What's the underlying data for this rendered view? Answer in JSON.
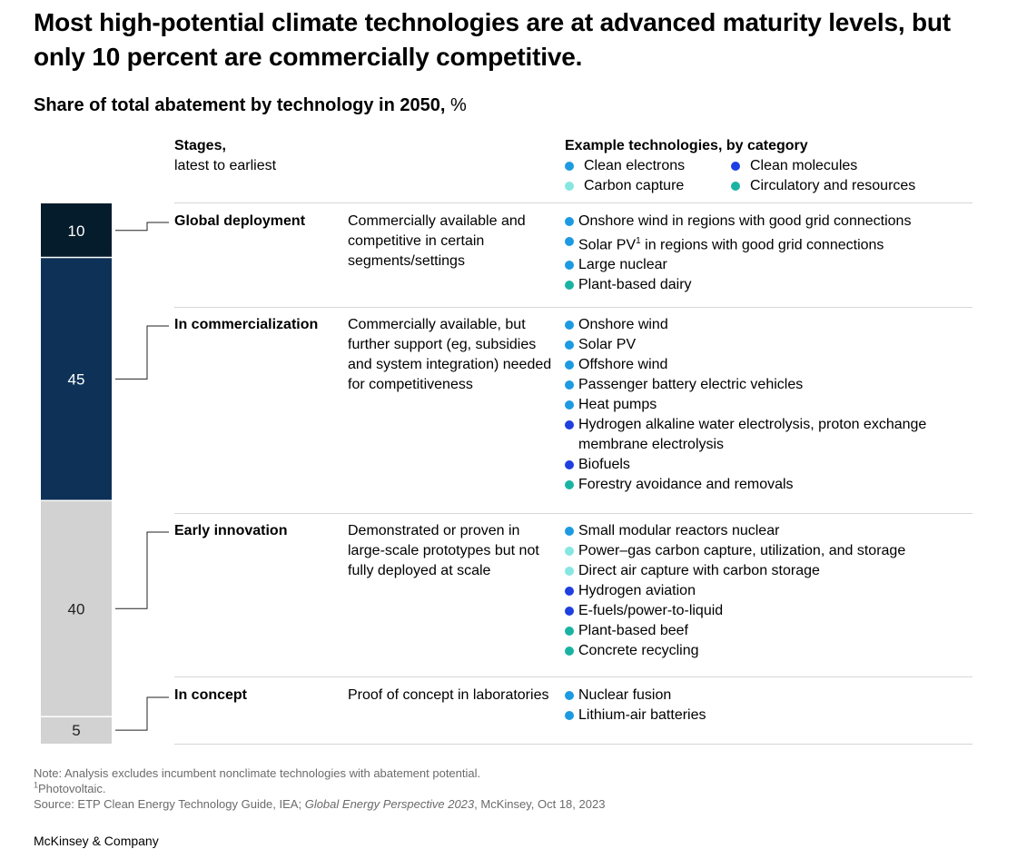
{
  "title": "Most high-potential climate technologies are at advanced maturity levels, but only 10 percent are commercially competitive.",
  "subtitle": {
    "bold": "Share of total abatement by technology in 2050,",
    "unit": " %"
  },
  "stages_header": {
    "line1": "Stages,",
    "line2": "latest to earliest"
  },
  "legend": {
    "title": "Example technologies, by category",
    "categories": [
      {
        "name": "Clean electrons",
        "color": "#1c9ae2"
      },
      {
        "name": "Clean molecules",
        "color": "#1f3fe0"
      },
      {
        "name": "Carbon capture",
        "color": "#86e6e2"
      },
      {
        "name": "Circulatory and resources",
        "color": "#1ab3a3"
      }
    ]
  },
  "chart_data": {
    "type": "bar",
    "title": "Share of total abatement by technology in 2050, %",
    "stacked": true,
    "orientation": "vertical",
    "categories": [
      "Global deployment",
      "In commercialization",
      "Early innovation",
      "In concept"
    ],
    "values": [
      10,
      45,
      40,
      5
    ],
    "colors": [
      "#051c2c",
      "#0e3257",
      "#d2d2d2",
      "#d2d2d2"
    ],
    "label_colors": [
      "#ffffff",
      "#ffffff",
      "#222222",
      "#222222"
    ],
    "unit": "%"
  },
  "stages": [
    {
      "name": "Global deployment",
      "description": "Commercially available and competitive in certain segments/settings",
      "technologies": [
        {
          "text": "Onshore wind in regions with good grid connections",
          "category": 0
        },
        {
          "pre": "Solar PV",
          "sup": "1",
          "post": " in regions with good grid connections",
          "category": 0
        },
        {
          "text": "Large nuclear",
          "category": 0
        },
        {
          "text": "Plant-based dairy",
          "category": 3
        }
      ]
    },
    {
      "name": "In commercialization",
      "description": "Commercially available, but further support (eg, subsidies and system integration) needed for competitiveness",
      "technologies": [
        {
          "text": "Onshore wind",
          "category": 0
        },
        {
          "text": "Solar PV",
          "category": 0
        },
        {
          "text": "Offshore wind",
          "category": 0
        },
        {
          "text": "Passenger battery electric vehicles",
          "category": 0
        },
        {
          "text": "Heat pumps",
          "category": 0
        },
        {
          "text": "Hydrogen alkaline water electrolysis, proton exchange membrane electrolysis",
          "category": 1
        },
        {
          "text": "Biofuels",
          "category": 1
        },
        {
          "text": "Forestry avoidance and removals",
          "category": 3
        }
      ]
    },
    {
      "name": "Early innovation",
      "description": "Demonstrated or proven in large-scale prototypes but not fully deployed at scale",
      "technologies": [
        {
          "text": "Small modular reactors nuclear",
          "category": 0
        },
        {
          "text": "Power–gas carbon capture, utilization, and storage",
          "category": 2
        },
        {
          "text": "Direct air capture with carbon storage",
          "category": 2
        },
        {
          "text": "Hydrogen aviation",
          "category": 1
        },
        {
          "text": "E-fuels/power-to-liquid",
          "category": 1
        },
        {
          "text": "Plant-based beef",
          "category": 3
        },
        {
          "text": "Concrete recycling",
          "category": 3
        }
      ]
    },
    {
      "name": "In concept",
      "description": "Proof of concept in laboratories",
      "technologies": [
        {
          "text": "Nuclear fusion",
          "category": 0
        },
        {
          "text": "Lithium-air batteries",
          "category": 0
        }
      ]
    }
  ],
  "notes": {
    "note": "Note: Analysis excludes incumbent nonclimate technologies with abatement potential.",
    "footnote_mark": "1",
    "footnote_text": "Photovoltaic.",
    "source_pre": "Source: ETP Clean Energy Technology Guide, IEA; ",
    "source_italic": "Global Energy Perspective 2023",
    "source_post": ", McKinsey, Oct 18, 2023"
  },
  "brand": "McKinsey & Company"
}
